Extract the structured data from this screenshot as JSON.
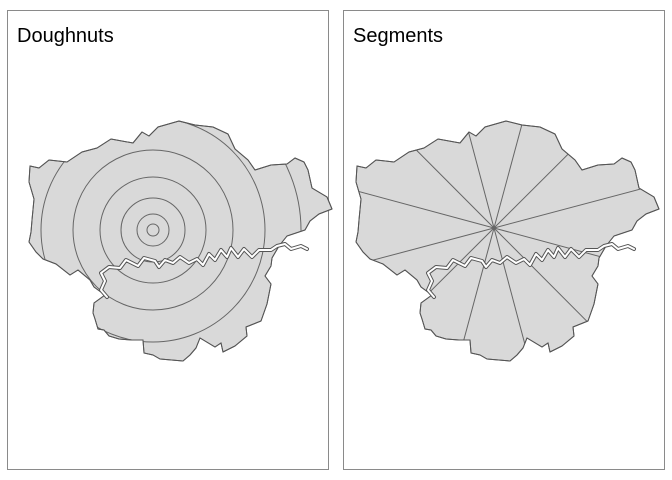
{
  "panels": [
    {
      "title": "Doughnuts"
    },
    {
      "title": "Segments"
    }
  ],
  "map": {
    "region_fill": "#d9d9d9",
    "boundary_color": "#555555",
    "river_color": "#666666",
    "ring_count": 6,
    "segment_count": 12
  }
}
